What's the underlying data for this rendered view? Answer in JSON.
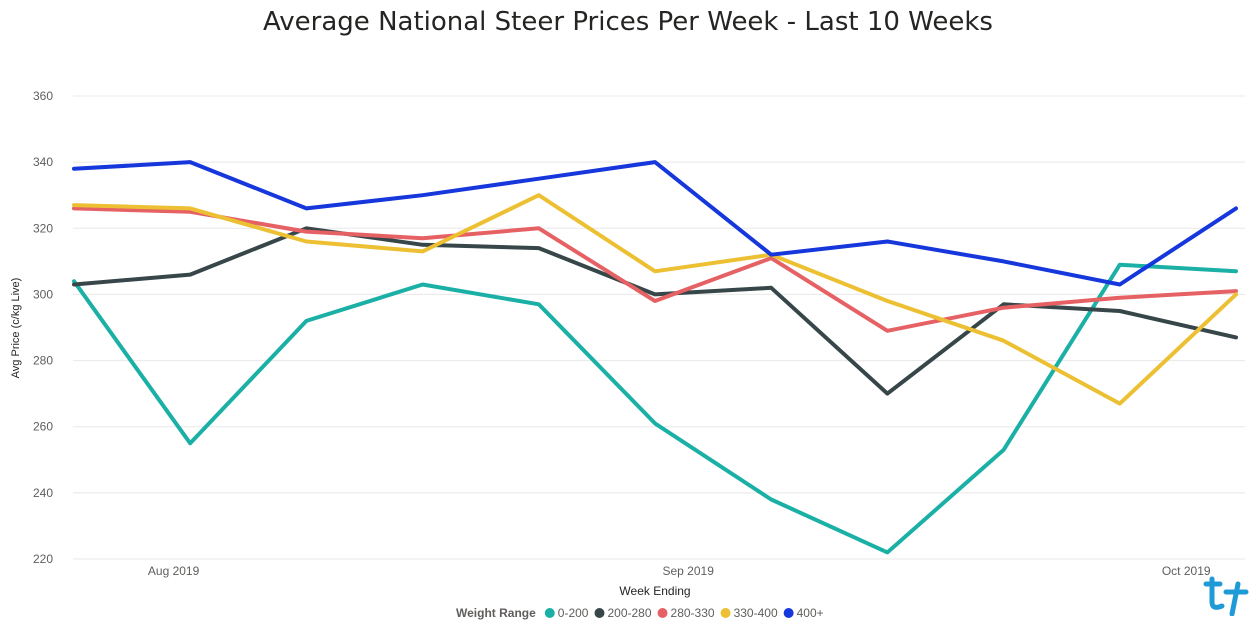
{
  "chart_data": {
    "type": "line",
    "title": "Average National Steer Prices Per Week - Last 10 Weeks",
    "xlabel": "Week Ending",
    "ylabel": "Avg Price (c/kg Live)",
    "x_tick_labels": [
      {
        "label": "Aug 2019",
        "date": "2019-08-01"
      },
      {
        "label": "Sep 2019",
        "date": "2019-09-01"
      },
      {
        "label": "Oct 2019",
        "date": "2019-10-01"
      }
    ],
    "x": [
      "2019-07-26",
      "2019-08-02",
      "2019-08-09",
      "2019-08-16",
      "2019-08-23",
      "2019-08-30",
      "2019-09-06",
      "2019-09-13",
      "2019-09-20",
      "2019-09-27",
      "2019-10-04"
    ],
    "ylim": [
      220,
      360
    ],
    "yticks": [
      220,
      240,
      260,
      280,
      300,
      320,
      340,
      360
    ],
    "grid": true,
    "legend_title": "Weight Range",
    "legend_position": "bottom",
    "series": [
      {
        "name": "0-200",
        "color": "#1AB0A6",
        "values": [
          304,
          255,
          292,
          303,
          297,
          261,
          238,
          222,
          253,
          309,
          307
        ]
      },
      {
        "name": "200-280",
        "color": "#374649",
        "values": [
          303,
          306,
          320,
          315,
          314,
          300,
          302,
          270,
          297,
          295,
          287
        ]
      },
      {
        "name": "280-330",
        "color": "#E66164",
        "values": [
          326,
          325,
          319,
          317,
          320,
          298,
          311,
          289,
          296,
          299,
          301
        ]
      },
      {
        "name": "330-400",
        "color": "#ECC032",
        "values": [
          327,
          326,
          316,
          313,
          330,
          307,
          312,
          298,
          286,
          267,
          300
        ]
      },
      {
        "name": "400+",
        "color": "#1537DB",
        "values": [
          338,
          340,
          326,
          330,
          335,
          340,
          312,
          316,
          310,
          303,
          326
        ]
      }
    ]
  },
  "logo": {
    "name": "brand-logo",
    "color": "#1E9BD7"
  }
}
